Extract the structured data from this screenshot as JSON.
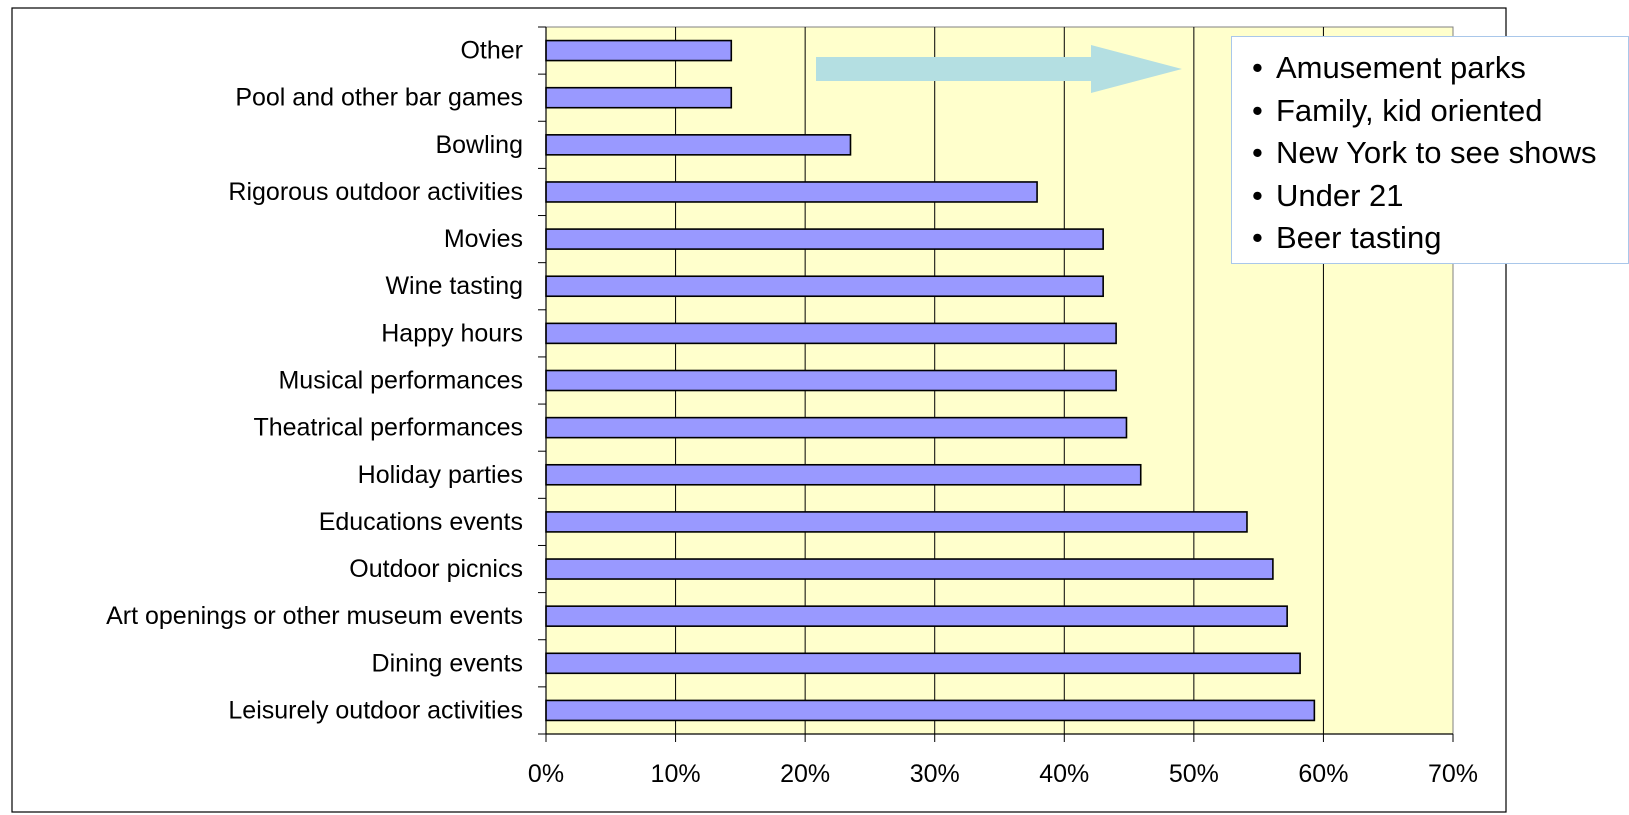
{
  "chart_data": {
    "type": "bar",
    "orientation": "horizontal",
    "categories": [
      "Other",
      "Pool and other bar games",
      "Bowling",
      "Rigorous outdoor activities",
      "Movies",
      "Wine tasting",
      "Happy hours",
      "Musical performances",
      "Theatrical performances",
      "Holiday parties",
      "Educations events",
      "Outdoor picnics",
      "Art openings or other museum events",
      "Dining events",
      "Leisurely outdoor activities"
    ],
    "values": [
      14.3,
      14.3,
      23.5,
      37.9,
      43.0,
      43.0,
      44.0,
      44.0,
      44.8,
      45.9,
      54.1,
      56.1,
      57.2,
      58.2,
      59.3
    ],
    "xlim": [
      0,
      70
    ],
    "x_ticks": [
      "0%",
      "10%",
      "20%",
      "30%",
      "40%",
      "50%",
      "60%",
      "70%"
    ],
    "value_unit": "%",
    "grid": "vertical",
    "colors": {
      "bar_fill": "#9999ff",
      "bar_edge": "#000000",
      "plot_background": "#ffffcc",
      "arrow": "#b4dfe2",
      "callout_border": "#a9c7ea"
    },
    "callout": {
      "items": [
        "Amusement parks",
        "Family, kid oriented",
        "New York to see shows",
        "Under 21",
        "Beer tasting"
      ]
    }
  }
}
